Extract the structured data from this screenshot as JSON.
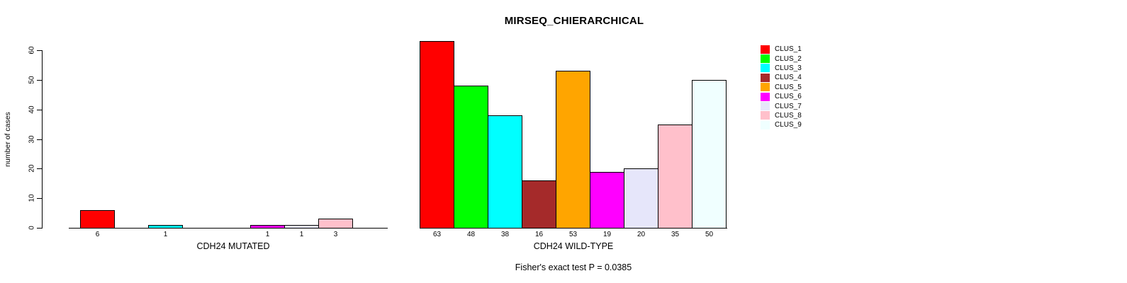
{
  "figure": {
    "title": "MIRSEQ_CHIERARCHICAL",
    "annotation": "Fisher's exact test P = 0.0385"
  },
  "chart_data": {
    "type": "bar",
    "title": "MIRSEQ_CHIERARCHICAL",
    "ylabel": "number of cases",
    "ylim": [
      0,
      60
    ],
    "yticks": [
      0,
      10,
      20,
      30,
      40,
      50,
      60
    ],
    "grid": false,
    "legend_position": "right-outside",
    "categories": [
      "CLUS_1",
      "CLUS_2",
      "CLUS_3",
      "CLUS_4",
      "CLUS_5",
      "CLUS_6",
      "CLUS_7",
      "CLUS_8",
      "CLUS_9"
    ],
    "colors": [
      "#FF0000",
      "#00FF00",
      "#00FFFF",
      "#A52A2A",
      "#FFA500",
      "#FF00FF",
      "#E6E6FA",
      "#FFC0CB",
      "#F0FFFF"
    ],
    "panels": [
      {
        "xlabel": "CDH24 MUTATED",
        "values": [
          6,
          0,
          1,
          0,
          0,
          1,
          1,
          3,
          0
        ],
        "bar_labels": [
          "6",
          "",
          "1",
          "",
          "",
          "1",
          "1",
          "3",
          ""
        ]
      },
      {
        "xlabel": "CDH24 WILD-TYPE",
        "values": [
          63,
          48,
          38,
          16,
          53,
          19,
          20,
          35,
          50
        ],
        "bar_labels": [
          "63",
          "48",
          "38",
          "16",
          "53",
          "19",
          "20",
          "35",
          "50"
        ]
      }
    ],
    "annotation": "Fisher's exact test P = 0.0385"
  }
}
